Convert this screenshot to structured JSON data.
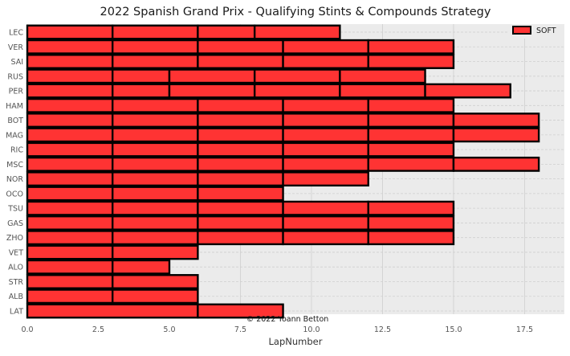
{
  "chart_data": {
    "type": "bar",
    "orientation": "horizontal-stacked",
    "title": "2022 Spanish Grand Prix - Qualifying Stints & Compounds Strategy",
    "xlabel": "LapNumber",
    "ylabel": "",
    "xlim": [
      0,
      18.9
    ],
    "xticks": [
      0.0,
      2.5,
      5.0,
      7.5,
      10.0,
      12.5,
      15.0,
      17.5
    ],
    "xtick_labels": [
      "0.0",
      "2.5",
      "5.0",
      "7.5",
      "10.0",
      "12.5",
      "15.0",
      "17.5"
    ],
    "grid": true,
    "legend": {
      "position": "top-right",
      "entries": [
        {
          "label": "SOFT",
          "color": "#ff3333"
        }
      ]
    },
    "annotation": "© 2022 Yoann Betton",
    "colors": {
      "SOFT": "#ff3333",
      "edge": "#000000",
      "plot_bg": "#ebebeb",
      "grid": "#cfcfcf"
    },
    "categories": [
      "LEC",
      "VER",
      "SAI",
      "RUS",
      "PER",
      "HAM",
      "BOT",
      "MAG",
      "RIC",
      "MSC",
      "NOR",
      "OCO",
      "TSU",
      "GAS",
      "ZHO",
      "VET",
      "ALO",
      "STR",
      "ALB",
      "LAT"
    ],
    "stints": {
      "LEC": [
        3,
        3,
        2,
        3
      ],
      "VER": [
        3,
        3,
        3,
        3,
        3
      ],
      "SAI": [
        3,
        3,
        3,
        3,
        3
      ],
      "RUS": [
        3,
        2,
        3,
        3,
        3
      ],
      "PER": [
        3,
        2,
        3,
        3,
        3,
        3
      ],
      "HAM": [
        3,
        3,
        3,
        3,
        3
      ],
      "BOT": [
        3,
        3,
        3,
        3,
        3,
        3
      ],
      "MAG": [
        3,
        3,
        3,
        3,
        3,
        3
      ],
      "RIC": [
        3,
        3,
        3,
        3,
        3
      ],
      "MSC": [
        3,
        3,
        3,
        3,
        3,
        3
      ],
      "NOR": [
        3,
        3,
        3,
        3
      ],
      "OCO": [
        3,
        3,
        3
      ],
      "TSU": [
        3,
        3,
        3,
        3,
        3
      ],
      "GAS": [
        3,
        3,
        3,
        3,
        3
      ],
      "ZHO": [
        3,
        3,
        3,
        3,
        3
      ],
      "VET": [
        3,
        3
      ],
      "ALO": [
        3,
        2
      ],
      "STR": [
        3,
        3
      ],
      "ALB": [
        3,
        3
      ],
      "LAT": [
        6,
        3
      ]
    }
  }
}
